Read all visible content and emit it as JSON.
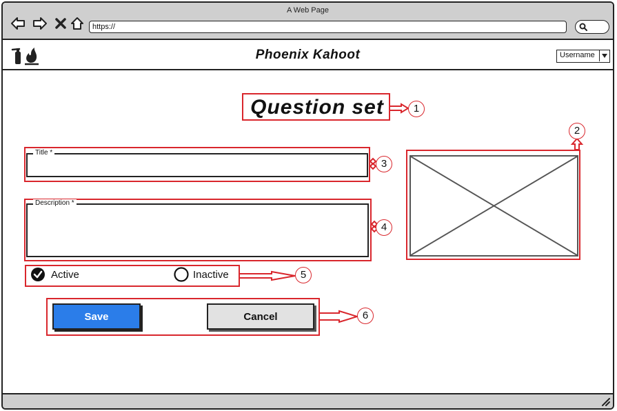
{
  "browser": {
    "window_title": "A Web Page",
    "url": "https://"
  },
  "app": {
    "title": "Phoenix Kahoot",
    "user_select": "Username"
  },
  "page": {
    "heading": "Question set"
  },
  "form": {
    "title_label": "Title *",
    "title_value": "",
    "description_label": "Description *",
    "description_value": "",
    "status_options": [
      "Active",
      "Inactive"
    ],
    "status_selected": "Active",
    "save_label": "Save",
    "cancel_label": "Cancel"
  },
  "callouts": [
    "1",
    "2",
    "3",
    "4",
    "5",
    "6"
  ],
  "colors": {
    "annotation_red": "#d9262c",
    "save_blue": "#2b7de9",
    "chrome_gray": "#cfcfcf",
    "cancel_gray": "#e2e2e2"
  },
  "icons": [
    "back-arrow-icon",
    "forward-arrow-icon",
    "stop-icon",
    "home-icon",
    "search-icon",
    "fire-extinguisher-icon",
    "flame-icon",
    "dropdown-caret-icon",
    "radio-checked-icon",
    "radio-unchecked-icon",
    "image-placeholder-icon",
    "resize-grip-icon"
  ]
}
